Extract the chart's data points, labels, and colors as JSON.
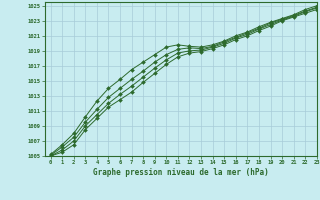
{
  "title": "Graphe pression niveau de la mer (hPa)",
  "background_color": "#c8ecf0",
  "grid_color": "#a8ccd8",
  "line_color": "#2d6a2d",
  "marker_color": "#2d6a2d",
  "xlim": [
    -0.5,
    23
  ],
  "ylim": [
    1005,
    1025.5
  ],
  "xticks": [
    0,
    1,
    2,
    3,
    4,
    5,
    6,
    7,
    8,
    9,
    10,
    11,
    12,
    13,
    14,
    15,
    16,
    17,
    18,
    19,
    20,
    21,
    22,
    23
  ],
  "yticks": [
    1005,
    1007,
    1009,
    1011,
    1013,
    1015,
    1017,
    1019,
    1021,
    1023,
    1025
  ],
  "hours": [
    0,
    1,
    2,
    3,
    4,
    5,
    6,
    7,
    8,
    9,
    10,
    11,
    12,
    13,
    14,
    15,
    16,
    17,
    18,
    19,
    20,
    21,
    22,
    23
  ],
  "series": [
    [
      1005.2,
      1006.5,
      1008.0,
      1010.2,
      1012.3,
      1014.0,
      1015.2,
      1016.5,
      1017.5,
      1018.5,
      1019.5,
      1019.8,
      1019.6,
      1019.5,
      1019.8,
      1020.3,
      1021.0,
      1021.5,
      1022.2,
      1022.8,
      1023.3,
      1023.8,
      1024.5,
      1025.0
    ],
    [
      1005.1,
      1006.2,
      1007.5,
      1009.5,
      1011.2,
      1012.8,
      1014.0,
      1015.2,
      1016.3,
      1017.5,
      1018.5,
      1019.2,
      1019.4,
      1019.3,
      1019.6,
      1020.2,
      1020.8,
      1021.4,
      1022.0,
      1022.7,
      1023.2,
      1023.7,
      1024.3,
      1024.8
    ],
    [
      1005.0,
      1005.8,
      1007.0,
      1009.0,
      1010.5,
      1012.0,
      1013.2,
      1014.3,
      1015.5,
      1016.7,
      1017.8,
      1018.7,
      1019.0,
      1019.1,
      1019.5,
      1020.0,
      1020.7,
      1021.2,
      1021.9,
      1022.5,
      1023.1,
      1023.6,
      1024.2,
      1024.7
    ],
    [
      1005.0,
      1005.5,
      1006.5,
      1008.5,
      1010.0,
      1011.5,
      1012.5,
      1013.5,
      1014.8,
      1016.0,
      1017.2,
      1018.2,
      1018.7,
      1018.9,
      1019.3,
      1019.8,
      1020.5,
      1021.0,
      1021.7,
      1022.3,
      1023.0,
      1023.5,
      1024.0,
      1024.5
    ]
  ]
}
